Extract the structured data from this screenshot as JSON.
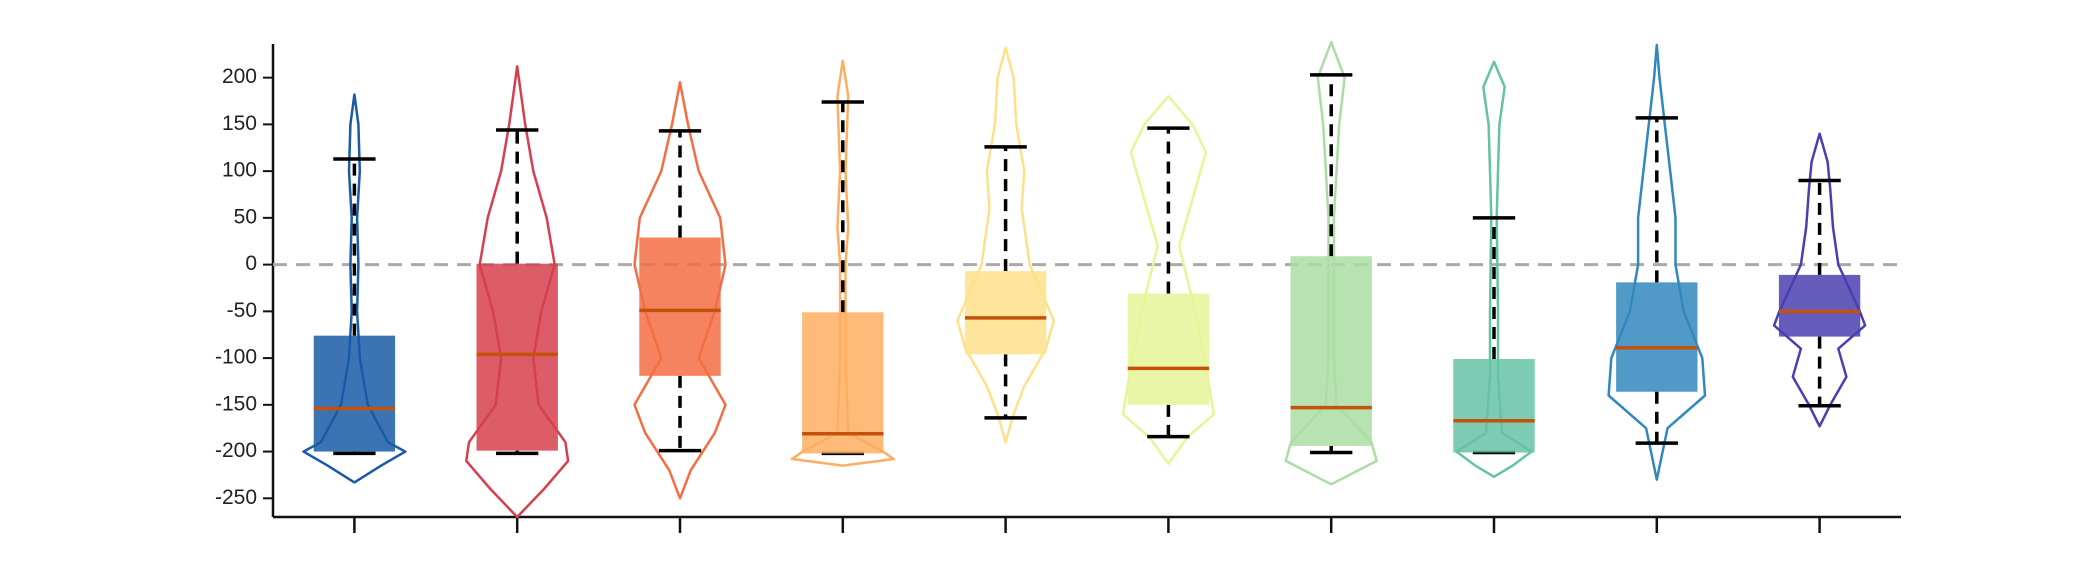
{
  "chart_data": {
    "type": "violin",
    "categories": [
      null,
      null,
      null,
      null,
      null,
      null,
      null,
      null,
      null,
      null
    ],
    "ylim": [
      -270,
      236
    ],
    "yticks": [
      -250,
      -200,
      -150,
      -100,
      -50,
      0,
      50,
      100,
      150,
      200
    ],
    "hline": 0,
    "median_color": "#c4520a",
    "groups": [
      {
        "color": "#1a5aa6",
        "q1": -200,
        "median": -154,
        "q3": -76,
        "whisker_low": -202,
        "whisker_high": 113,
        "violin": {
          "y": [
            182,
            150,
            100,
            50,
            0,
            -50,
            -100,
            -150,
            -190,
            -200,
            -215,
            -233
          ],
          "width": [
            0,
            3,
            4,
            2,
            3,
            2,
            4,
            10,
            25,
            38,
            20,
            0
          ]
        }
      },
      {
        "color": "#d6404e",
        "q1": -199,
        "median": -96,
        "q3": 1,
        "whisker_low": -202,
        "whisker_high": 144,
        "violin": {
          "y": [
            212,
            150,
            100,
            50,
            0,
            -50,
            -100,
            -150,
            -190,
            -210,
            -240,
            -270
          ],
          "width": [
            0,
            6,
            12,
            22,
            28,
            18,
            12,
            16,
            36,
            38,
            20,
            0
          ]
        }
      },
      {
        "color": "#f46d43",
        "q1": -119,
        "median": -49,
        "q3": 29,
        "whisker_low": -199,
        "whisker_high": 143,
        "violin": {
          "y": [
            195,
            150,
            100,
            50,
            0,
            -50,
            -100,
            -150,
            -180,
            -220,
            -250
          ],
          "width": [
            0,
            6,
            14,
            30,
            34,
            26,
            14,
            34,
            26,
            8,
            0
          ]
        }
      },
      {
        "color": "#fdae61",
        "q1": -202,
        "median": -181,
        "q3": -51,
        "whisker_low": -202,
        "whisker_high": 174,
        "violin": {
          "y": [
            218,
            180,
            100,
            40,
            0,
            -100,
            -180,
            -200,
            -208,
            -215
          ],
          "width": [
            0,
            4,
            2,
            4,
            2,
            2,
            4,
            30,
            38,
            0
          ]
        }
      },
      {
        "color": "#fee08b",
        "q1": -96,
        "median": -57,
        "q3": -7,
        "whisker_low": -164,
        "whisker_high": 126,
        "violin": {
          "y": [
            232,
            200,
            150,
            100,
            60,
            0,
            -60,
            -90,
            -130,
            -160,
            -190
          ],
          "width": [
            0,
            6,
            8,
            14,
            12,
            18,
            36,
            30,
            14,
            6,
            0
          ]
        }
      },
      {
        "color": "#e6f598",
        "q1": -150,
        "median": -111,
        "q3": -31,
        "whisker_low": -184,
        "whisker_high": 146,
        "violin": {
          "y": [
            180,
            150,
            120,
            80,
            20,
            -50,
            -110,
            -160,
            -185,
            -213
          ],
          "width": [
            0,
            18,
            28,
            20,
            8,
            20,
            28,
            34,
            14,
            0
          ]
        }
      },
      {
        "color": "#abdda4",
        "q1": -194,
        "median": -153,
        "q3": 9,
        "whisker_low": -201,
        "whisker_high": 203,
        "violin": {
          "y": [
            238,
            200,
            150,
            50,
            0,
            -100,
            -150,
            -190,
            -210,
            -235
          ],
          "width": [
            0,
            10,
            6,
            2,
            2,
            2,
            4,
            30,
            34,
            0
          ]
        }
      },
      {
        "color": "#66c2a5",
        "q1": -201,
        "median": -167,
        "q3": -101,
        "whisker_low": -201,
        "whisker_high": 50,
        "violin": {
          "y": [
            217,
            190,
            150,
            100,
            50,
            -50,
            -120,
            -180,
            -200,
            -215,
            -227
          ],
          "width": [
            0,
            8,
            4,
            3,
            2,
            3,
            3,
            6,
            28,
            14,
            0
          ]
        }
      },
      {
        "color": "#3288bd",
        "q1": -136,
        "median": -89,
        "q3": -19,
        "whisker_low": -191,
        "whisker_high": 157,
        "violin": {
          "y": [
            235,
            200,
            150,
            100,
            50,
            0,
            -50,
            -100,
            -140,
            -175,
            -230
          ],
          "width": [
            0,
            2,
            6,
            10,
            14,
            14,
            20,
            34,
            36,
            8,
            0
          ]
        }
      },
      {
        "color": "#4a3fb0",
        "q1": -77,
        "median": -50,
        "q3": -11,
        "whisker_low": -151,
        "whisker_high": 90,
        "violin": {
          "y": [
            140,
            110,
            80,
            40,
            0,
            -50,
            -65,
            -90,
            -120,
            -150,
            -173
          ],
          "width": [
            0,
            6,
            8,
            10,
            14,
            30,
            34,
            14,
            20,
            8,
            0
          ]
        }
      }
    ]
  }
}
